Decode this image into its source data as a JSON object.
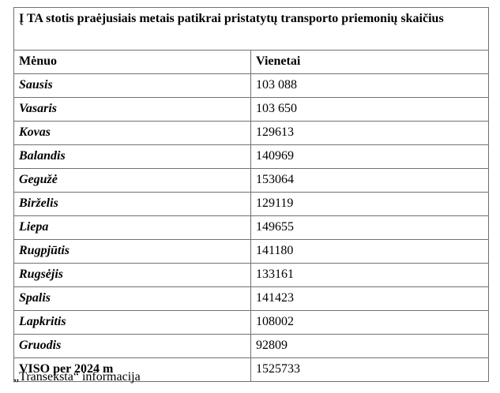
{
  "table": {
    "title": "Į TA stotis praėjusiais metais patikrai pristatytų transporto priemonių skaičius",
    "columns": [
      {
        "label": "Mėnuo"
      },
      {
        "label": "Vienetai"
      }
    ],
    "rows": [
      {
        "month": "Sausis",
        "units": "103 088"
      },
      {
        "month": "Vasaris",
        "units": "103 650"
      },
      {
        "month": "Kovas",
        "units": "129613"
      },
      {
        "month": "Balandis",
        "units": "140969"
      },
      {
        "month": "Gegužė",
        "units": "153064"
      },
      {
        "month": "Birželis",
        "units": "129119"
      },
      {
        "month": "Liepa",
        "units": "149655"
      },
      {
        "month": "Rugpjūtis",
        "units": "141180"
      },
      {
        "month": "Rugsėjis",
        "units": "133161"
      },
      {
        "month": "Spalis",
        "units": "141423"
      },
      {
        "month": "Lapkritis",
        "units": "108002"
      },
      {
        "month": "Gruodis",
        "units": "92809"
      }
    ],
    "total_row": {
      "label": "VISO per 2024 m",
      "units": "1525733"
    },
    "border_color": "#707070"
  },
  "footer": {
    "source_note": "„Transeksta“ informacija"
  }
}
